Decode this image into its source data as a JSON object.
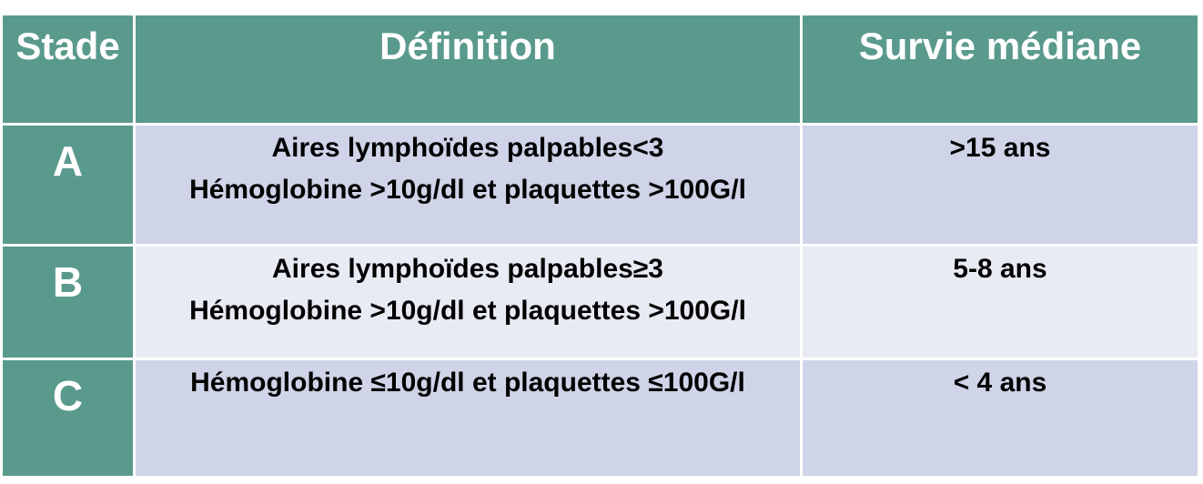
{
  "headers": {
    "stade": "Stade",
    "definition": "Définition",
    "survie": "Survie médiane"
  },
  "rows": [
    {
      "stade": "A",
      "definition": [
        "Aires lymphoïdes palpables<3",
        "Hémoglobine >10g/dl et plaquettes >100G/l"
      ],
      "survie": ">15 ans"
    },
    {
      "stade": "B",
      "definition": [
        "Aires lymphoïdes palpables≥3",
        "Hémoglobine >10g/dl et plaquettes >100G/l"
      ],
      "survie": "5-8 ans"
    },
    {
      "stade": "C",
      "definition": [
        "Hémoglobine ≤10g/dl et plaquettes ≤100G/l"
      ],
      "survie": "< 4 ans"
    }
  ],
  "colors": {
    "header_bg": "#5a9a8c",
    "row_dark": "#cfd4e8",
    "row_light": "#e8eaf4"
  }
}
